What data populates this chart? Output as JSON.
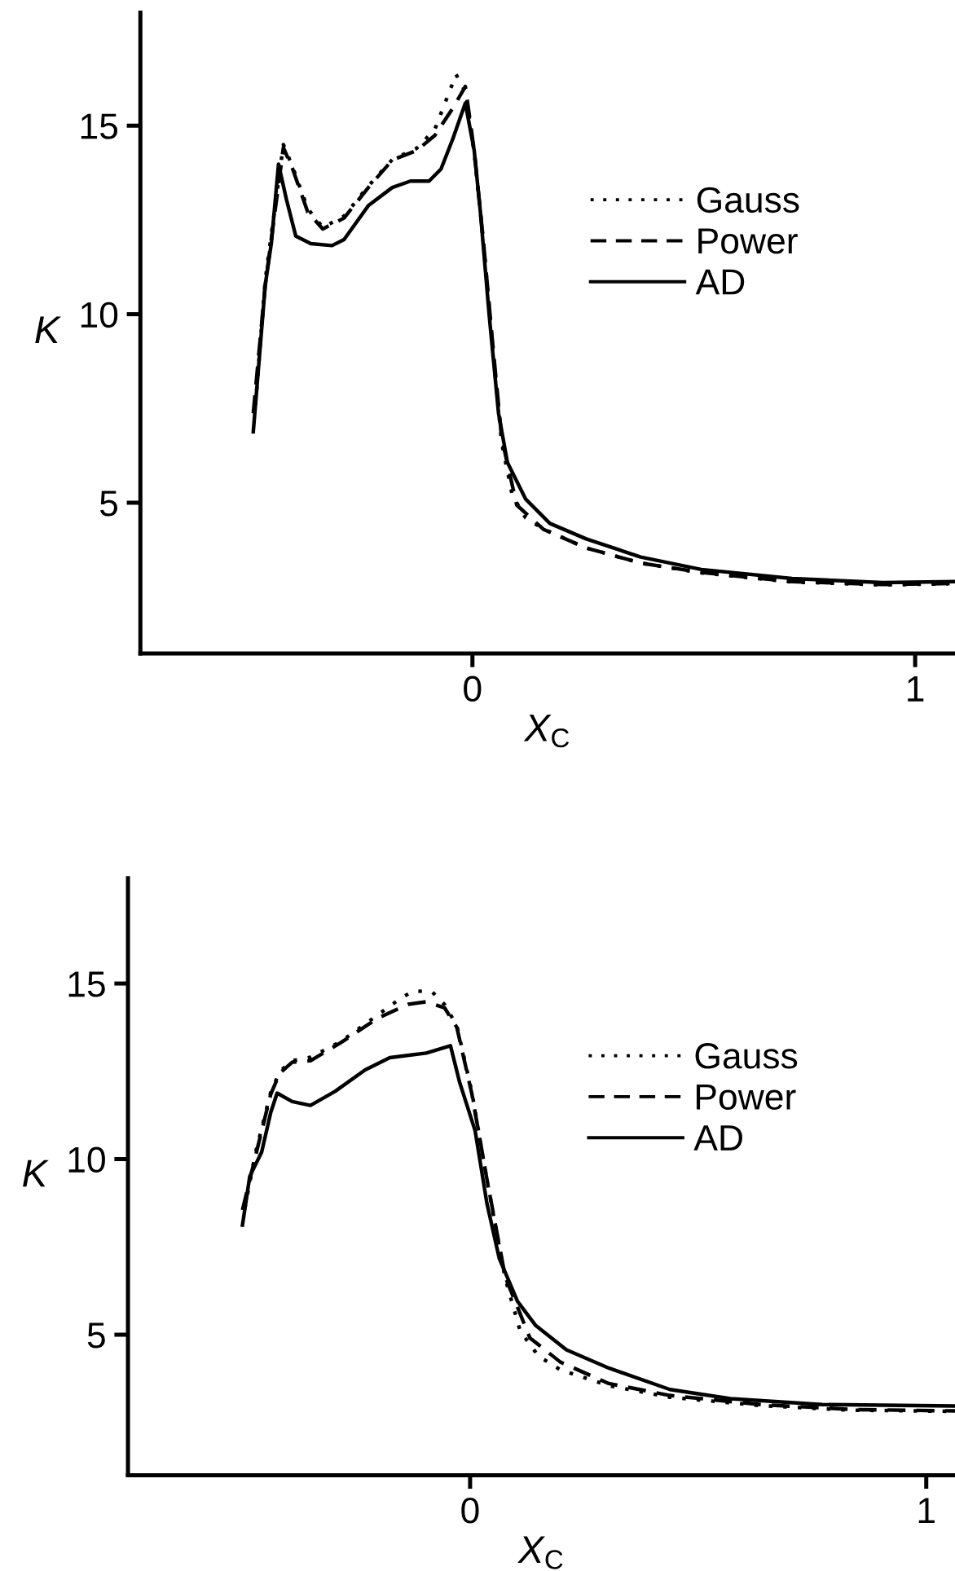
{
  "chart_data": [
    {
      "type": "line",
      "xlabel": "X$_{C}$",
      "ylabel": "K",
      "xlim": [
        -0.75,
        1.09
      ],
      "ylim": [
        1,
        18
      ],
      "xticks": [
        0,
        1
      ],
      "yticks": [
        5,
        10,
        15
      ],
      "grid": false,
      "legend": "upper right",
      "marker": "none",
      "series": [
        {
          "name": "Gauss",
          "color": "#000000",
          "line_style": "dotted",
          "x": [
            -0.49,
            -0.468,
            -0.427,
            -0.406,
            -0.372,
            -0.338,
            -0.29,
            -0.235,
            -0.181,
            -0.126,
            -0.085,
            -0.037,
            -0.016,
            0.004,
            0.025,
            0.045,
            0.066,
            0.09,
            0.12,
            0.161,
            0.257,
            0.38,
            0.517,
            0.722,
            0.927,
            1.075
          ],
          "values": [
            7.6,
            10.9,
            14.5,
            13.9,
            12.8,
            12.3,
            12.6,
            13.4,
            14.1,
            14.4,
            14.9,
            16.36,
            15.9,
            14.3,
            11.9,
            9.2,
            6.6,
            5.2,
            4.6,
            4.3,
            3.8,
            3.4,
            3.14,
            2.9,
            2.82,
            2.85
          ]
        },
        {
          "name": "Power",
          "color": "#000000",
          "line_style": "dashed",
          "x": [
            -0.495,
            -0.468,
            -0.427,
            -0.406,
            -0.372,
            -0.338,
            -0.29,
            -0.235,
            -0.181,
            -0.126,
            -0.085,
            -0.044,
            -0.016,
            0.004,
            0.025,
            0.045,
            0.066,
            0.1,
            0.161,
            0.257,
            0.38,
            0.517,
            0.722,
            0.927,
            1.089
          ],
          "values": [
            7.37,
            10.77,
            14.42,
            13.85,
            12.71,
            12.26,
            12.55,
            13.36,
            14.09,
            14.34,
            14.74,
            15.47,
            16.04,
            14.34,
            11.9,
            9.31,
            6.72,
            4.94,
            4.29,
            3.8,
            3.4,
            3.15,
            2.91,
            2.83,
            2.86
          ]
        },
        {
          "name": "AD",
          "color": "#000000",
          "line_style": "solid",
          "x": [
            -0.495,
            -0.468,
            -0.454,
            -0.438,
            -0.42,
            -0.399,
            -0.365,
            -0.317,
            -0.29,
            -0.235,
            -0.181,
            -0.14,
            -0.098,
            -0.071,
            -0.044,
            -0.016,
            0.004,
            0.018,
            0.038,
            0.059,
            0.079,
            0.12,
            0.175,
            0.257,
            0.38,
            0.517,
            0.722,
            0.927,
            1.089
          ],
          "values": [
            6.88,
            10.77,
            11.9,
            13.98,
            13.04,
            12.07,
            11.87,
            11.82,
            11.98,
            12.88,
            13.36,
            13.53,
            13.53,
            13.85,
            14.66,
            15.6,
            14.34,
            12.71,
            9.96,
            7.37,
            6.07,
            5.1,
            4.45,
            4.04,
            3.56,
            3.23,
            2.99,
            2.88,
            2.91
          ]
        }
      ]
    },
    {
      "type": "line",
      "xlabel": "X$_{C}$",
      "ylabel": "K",
      "xlim": [
        -0.75,
        1.063
      ],
      "ylim": [
        1,
        18
      ],
      "xticks": [
        0,
        1
      ],
      "yticks": [
        5,
        10,
        15
      ],
      "grid": false,
      "legend": "upper right",
      "marker": "none",
      "series": [
        {
          "name": "Gauss",
          "color": "#000000",
          "line_style": "dotted",
          "x": [
            -0.494,
            -0.47,
            -0.437,
            -0.417,
            -0.39,
            -0.35,
            -0.283,
            -0.203,
            -0.15,
            -0.123,
            -0.083,
            -0.056,
            -0.029,
            0.004,
            0.037,
            0.077,
            0.11,
            0.15,
            0.198,
            0.304,
            0.438,
            0.638,
            0.838,
            1.05
          ],
          "values": [
            8.6,
            10.2,
            11.9,
            12.5,
            12.8,
            12.9,
            13.35,
            14.1,
            14.6,
            14.79,
            14.76,
            14.4,
            13.8,
            11.9,
            9.4,
            6.6,
            5.1,
            4.39,
            4.0,
            3.55,
            3.22,
            2.98,
            2.85,
            2.82
          ]
        },
        {
          "name": "Power",
          "color": "#000000",
          "line_style": "dashed",
          "x": [
            -0.499,
            -0.47,
            -0.437,
            -0.417,
            -0.39,
            -0.35,
            -0.283,
            -0.203,
            -0.136,
            -0.096,
            -0.056,
            -0.029,
            0.004,
            0.037,
            0.077,
            0.131,
            0.198,
            0.304,
            0.438,
            0.638,
            0.838,
            1.063
          ],
          "values": [
            8.55,
            10.11,
            11.85,
            12.45,
            12.76,
            12.8,
            13.32,
            14.01,
            14.41,
            14.48,
            14.31,
            13.75,
            11.85,
            9.42,
            6.65,
            4.91,
            4.22,
            3.61,
            3.27,
            3.01,
            2.87,
            2.83
          ]
        },
        {
          "name": "AD",
          "color": "#000000",
          "line_style": "solid",
          "x": [
            -0.499,
            -0.483,
            -0.457,
            -0.437,
            -0.423,
            -0.39,
            -0.35,
            -0.296,
            -0.23,
            -0.176,
            -0.096,
            -0.043,
            -0.023,
            0.011,
            0.037,
            0.064,
            0.104,
            0.144,
            0.211,
            0.304,
            0.438,
            0.571,
            0.772,
            1.063
          ],
          "values": [
            8.12,
            9.51,
            10.2,
            11.33,
            11.88,
            11.64,
            11.53,
            11.93,
            12.54,
            12.89,
            13.02,
            13.23,
            12.19,
            10.81,
            8.73,
            7.17,
            5.95,
            5.26,
            4.57,
            4.05,
            3.44,
            3.18,
            3.01,
            2.97
          ]
        }
      ]
    }
  ]
}
